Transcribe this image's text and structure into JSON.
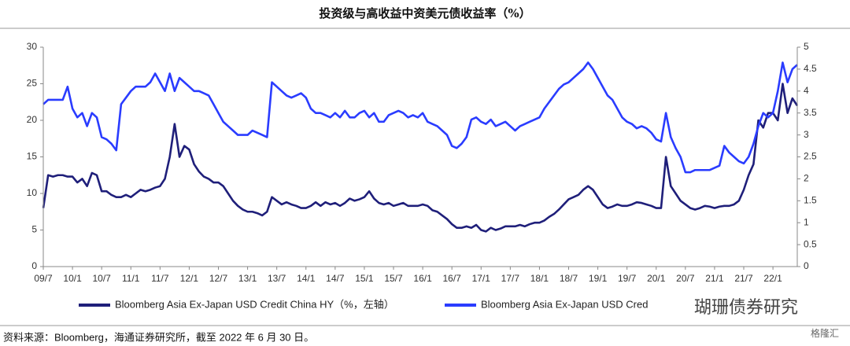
{
  "chart_data": {
    "type": "line",
    "title": "投资级与高收益中资美元债收益率（%）",
    "source": "资料来源：Bloomberg，海通证券研究所，截至 2022 年 6 月 30 日。",
    "annotations": [
      "瑚珊债券研究",
      "格隆汇"
    ],
    "categories": [
      "09/7",
      null,
      null,
      null,
      null,
      null,
      "10/1",
      null,
      null,
      null,
      null,
      null,
      "10/7",
      null,
      null,
      null,
      null,
      null,
      "11/1",
      null,
      null,
      null,
      null,
      null,
      "11/7",
      null,
      null,
      null,
      null,
      null,
      "12/1",
      null,
      null,
      null,
      null,
      null,
      "12/7",
      null,
      null,
      null,
      null,
      null,
      "13/1",
      null,
      null,
      null,
      null,
      null,
      "13/7",
      null,
      null,
      null,
      null,
      null,
      "14/1",
      null,
      null,
      null,
      null,
      null,
      "14/7",
      null,
      null,
      null,
      null,
      null,
      "15/1",
      null,
      null,
      null,
      null,
      null,
      "15/7",
      null,
      null,
      null,
      null,
      null,
      "16/1",
      null,
      null,
      null,
      null,
      null,
      "16/7",
      null,
      null,
      null,
      null,
      null,
      "17/1",
      null,
      null,
      null,
      null,
      null,
      "17/7",
      null,
      null,
      null,
      null,
      null,
      "18/1",
      null,
      null,
      null,
      null,
      null,
      "18/7",
      null,
      null,
      null,
      null,
      null,
      "19/1",
      null,
      null,
      null,
      null,
      null,
      "19/7",
      null,
      null,
      null,
      null,
      null,
      "20/1",
      null,
      null,
      null,
      null,
      null,
      "20/7",
      null,
      null,
      null,
      null,
      null,
      "21/1",
      null,
      null,
      null,
      null,
      null,
      "21/7",
      null,
      null,
      null,
      null,
      null,
      "22/1",
      null,
      null,
      null,
      null,
      null
    ],
    "series": [
      {
        "name": "Bloomberg Asia Ex-Japan USD Credit China HY（%，左轴）",
        "color": "#1f1f7a",
        "values": [
          8,
          12.5,
          12.3,
          12.5,
          12.5,
          12.3,
          12.3,
          11.5,
          12,
          11,
          12.8,
          12.5,
          10.3,
          10.3,
          9.8,
          9.5,
          9.5,
          9.8,
          9.5,
          10,
          10.5,
          10.3,
          10.5,
          10.8,
          11,
          12,
          15,
          19.5,
          15,
          16.5,
          16,
          14,
          13,
          12.3,
          12,
          11.5,
          11.5,
          11,
          10,
          9,
          8.3,
          7.8,
          7.5,
          7.5,
          7.3,
          7,
          7.5,
          9.5,
          9,
          8.5,
          8.8,
          8.5,
          8.3,
          8,
          8,
          8.3,
          8.8,
          8.3,
          8.8,
          8.5,
          8.7,
          8.3,
          8.7,
          9.3,
          9,
          9.2,
          9.5,
          10.3,
          9.3,
          8.7,
          8.5,
          8.7,
          8.3,
          8.5,
          8.7,
          8.3,
          8.3,
          8.3,
          8.5,
          8.3,
          7.7,
          7.5,
          7,
          6.5,
          5.8,
          5.3,
          5.3,
          5.5,
          5.3,
          5.7,
          5,
          4.8,
          5.3,
          5,
          5.2,
          5.5,
          5.5,
          5.5,
          5.7,
          5.5,
          5.8,
          6,
          6,
          6.3,
          6.8,
          7.2,
          7.8,
          8.5,
          9.2,
          9.5,
          9.8,
          10.5,
          11,
          10.5,
          9.5,
          8.5,
          8,
          8.2,
          8.5,
          8.3,
          8.3,
          8.5,
          8.8,
          8.7,
          8.5,
          8.3,
          8,
          8,
          15,
          11,
          10,
          9,
          8.5,
          8,
          7.8,
          8,
          8.3,
          8.2,
          8,
          8.2,
          8.3,
          8.3,
          8.5,
          9,
          10.5,
          12.5,
          14,
          20,
          19,
          21,
          21,
          20,
          25,
          21,
          23,
          22
        ]
      },
      {
        "name": "Bloomberg Asia Ex-Japan USD Cred",
        "color": "#2a3cff",
        "axis": "y2",
        "values": [
          3.7,
          3.8,
          3.8,
          3.8,
          3.8,
          4.1,
          3.6,
          3.4,
          3.5,
          3.2,
          3.5,
          3.4,
          2.95,
          2.9,
          2.8,
          2.65,
          3.7,
          3.85,
          4.0,
          4.1,
          4.1,
          4.1,
          4.2,
          4.4,
          4.2,
          4.0,
          4.4,
          4.0,
          4.3,
          4.2,
          4.1,
          4.0,
          4.0,
          3.95,
          3.9,
          3.7,
          3.5,
          3.3,
          3.2,
          3.1,
          3.0,
          3.0,
          3.0,
          3.1,
          3.05,
          3.0,
          2.95,
          4.2,
          4.1,
          4.0,
          3.9,
          3.85,
          3.9,
          3.95,
          3.85,
          3.6,
          3.5,
          3.5,
          3.45,
          3.4,
          3.5,
          3.4,
          3.55,
          3.4,
          3.4,
          3.5,
          3.55,
          3.4,
          3.5,
          3.3,
          3.3,
          3.45,
          3.5,
          3.55,
          3.5,
          3.4,
          3.45,
          3.4,
          3.5,
          3.3,
          3.25,
          3.2,
          3.1,
          3.0,
          2.75,
          2.7,
          2.8,
          2.95,
          3.35,
          3.4,
          3.3,
          3.25,
          3.35,
          3.2,
          3.25,
          3.3,
          3.2,
          3.1,
          3.2,
          3.25,
          3.3,
          3.35,
          3.4,
          3.6,
          3.75,
          3.9,
          4.05,
          4.15,
          4.2,
          4.3,
          4.4,
          4.5,
          4.65,
          4.5,
          4.3,
          4.1,
          3.9,
          3.8,
          3.6,
          3.4,
          3.3,
          3.25,
          3.15,
          3.2,
          3.15,
          3.05,
          2.9,
          2.85,
          3.5,
          2.95,
          2.7,
          2.5,
          2.15,
          2.15,
          2.2,
          2.2,
          2.2,
          2.2,
          2.25,
          2.3,
          2.75,
          2.6,
          2.5,
          2.4,
          2.35,
          2.5,
          2.8,
          3.2,
          3.5,
          3.4,
          3.5,
          4.0,
          4.65,
          4.2,
          4.5,
          4.6
        ]
      }
    ],
    "ylim": [
      0,
      30
    ],
    "yticks": [
      0,
      5,
      10,
      15,
      20,
      25,
      30
    ],
    "y2lim": [
      0,
      5
    ],
    "y2ticks": [
      0,
      0.5,
      1,
      1.5,
      2,
      2.5,
      3,
      3.5,
      4,
      4.5,
      5
    ],
    "grid": false
  }
}
